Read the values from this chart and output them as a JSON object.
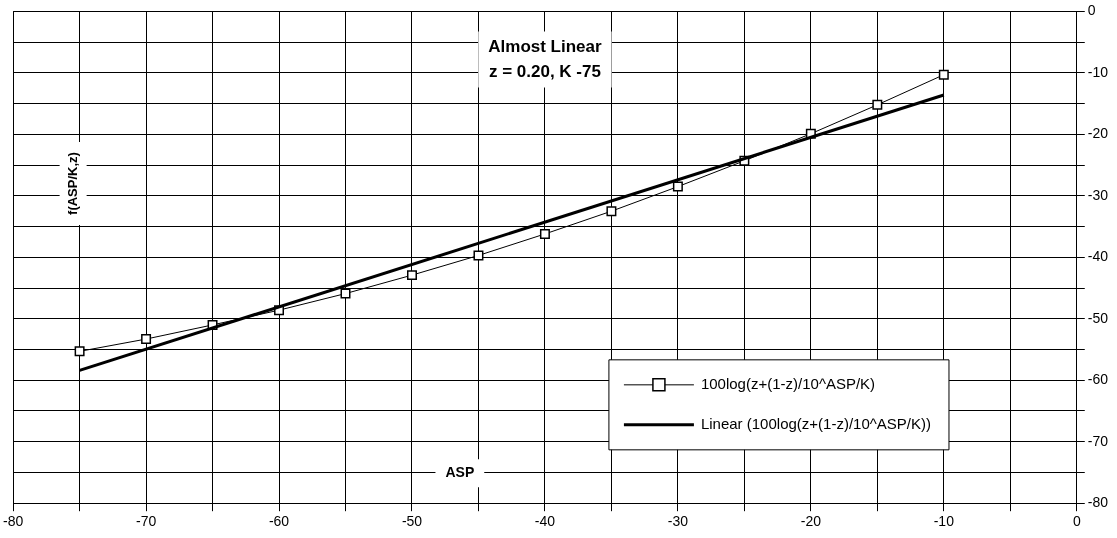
{
  "chart_data": {
    "type": "line",
    "title": "Almost Linear",
    "subtitle": "z = 0.20, K -75",
    "xlabel": "ASP",
    "ylabel": "f(ASP/K,z)",
    "x": [
      -75,
      -70,
      -65,
      -60,
      -55,
      -50,
      -45,
      -40,
      -35,
      -30,
      -25,
      -20,
      -15,
      -10
    ],
    "series": [
      {
        "name": "100log(z+(1-z)/10^ASP/K)",
        "color": "#000000",
        "marker": "square",
        "values": [
          -55.3,
          -53.3,
          -51.0,
          -48.6,
          -45.9,
          -42.9,
          -39.7,
          -36.2,
          -32.5,
          -28.5,
          -24.3,
          -19.9,
          -15.2,
          -10.3
        ]
      },
      {
        "name": "Linear (100log(z+(1-z)/10^ASP/K))",
        "color": "#000000",
        "marker": "none",
        "x": [
          -75,
          -10
        ],
        "values": [
          -58.4,
          -13.6
        ]
      }
    ],
    "xlim": [
      -80,
      0
    ],
    "xticks": [
      -80,
      {
        "value": -75,
        "label": null
      },
      -70,
      {
        "value": -65,
        "label": null
      },
      -60,
      {
        "value": -55,
        "label": null
      },
      -50,
      {
        "value": -45,
        "label": null
      },
      -40,
      {
        "value": -35,
        "label": null
      },
      -30,
      {
        "value": -25,
        "label": null
      },
      -20,
      {
        "value": -15,
        "label": null
      },
      -10,
      {
        "value": -5,
        "label": null
      },
      0
    ],
    "ylim": [
      -80,
      0
    ],
    "yticks": [
      -80,
      {
        "value": -75,
        "label": null
      },
      -70,
      {
        "value": -65,
        "label": null
      },
      -60,
      {
        "value": -55,
        "label": null
      },
      -50,
      {
        "value": -45,
        "label": null
      },
      -40,
      {
        "value": -35,
        "label": null
      },
      -30,
      {
        "value": -25,
        "label": null
      },
      -20,
      {
        "value": -15,
        "label": null
      },
      -10,
      {
        "value": -5,
        "label": null
      },
      0
    ],
    "grid": true,
    "legend": "bottom",
    "line_style": "solid"
  }
}
